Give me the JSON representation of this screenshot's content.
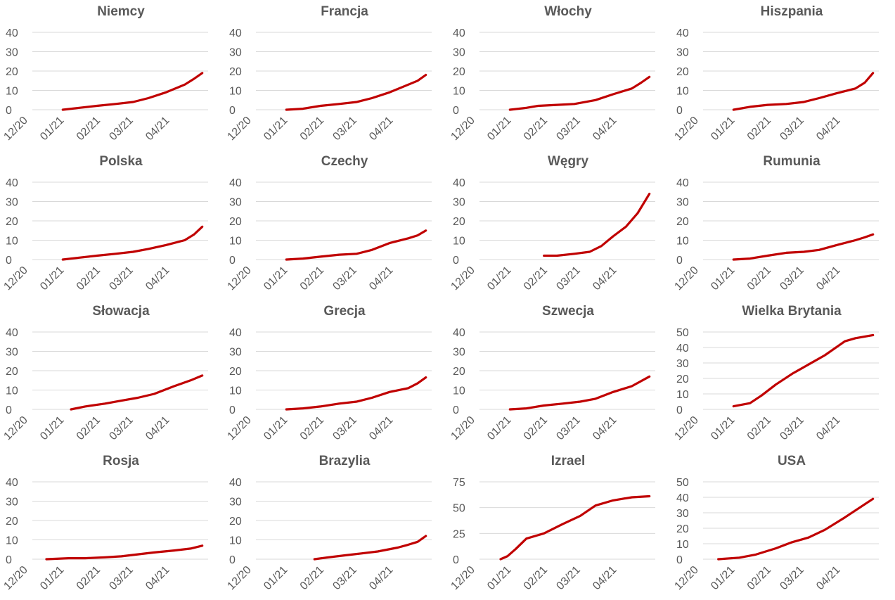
{
  "colors": {
    "series": "#c00000",
    "grid": "#d9d9d9",
    "text": "#595959"
  },
  "chart_data": [
    {
      "type": "line",
      "title": "Niemcy",
      "x_ticks": [
        "12/20",
        "01/21",
        "02/21",
        "03/21",
        "04/21"
      ],
      "ylim": [
        0,
        40
      ],
      "y_ticks": [
        "0",
        "10",
        "20",
        "30",
        "40"
      ],
      "series": [
        {
          "color": "#c00000",
          "x": [
            "12/27",
            "01/10",
            "01/25",
            "02/10",
            "02/25",
            "03/10",
            "03/25",
            "04/10",
            "04/18",
            "04/25"
          ],
          "values": [
            0,
            1,
            2,
            3,
            4,
            6,
            9,
            13,
            16,
            19
          ]
        }
      ]
    },
    {
      "type": "line",
      "title": "Francja",
      "x_ticks": [
        "12/20",
        "01/21",
        "02/21",
        "03/21",
        "04/21"
      ],
      "ylim": [
        0,
        40
      ],
      "y_ticks": [
        "0",
        "10",
        "20",
        "30",
        "40"
      ],
      "series": [
        {
          "color": "#c00000",
          "x": [
            "12/27",
            "01/10",
            "01/25",
            "02/10",
            "02/25",
            "03/10",
            "03/25",
            "04/10",
            "04/18",
            "04/25"
          ],
          "values": [
            0,
            0.5,
            2,
            3,
            4,
            6,
            9,
            13,
            15,
            18
          ]
        }
      ]
    },
    {
      "type": "line",
      "title": "Włochy",
      "x_ticks": [
        "12/20",
        "01/21",
        "02/21",
        "03/21",
        "04/21"
      ],
      "ylim": [
        0,
        40
      ],
      "y_ticks": [
        "0",
        "10",
        "20",
        "30",
        "40"
      ],
      "series": [
        {
          "color": "#c00000",
          "x": [
            "12/27",
            "01/10",
            "01/20",
            "02/05",
            "02/20",
            "03/10",
            "03/25",
            "04/10",
            "04/18",
            "04/25"
          ],
          "values": [
            0,
            1,
            2,
            2.5,
            3,
            5,
            8,
            11,
            14,
            17
          ]
        }
      ]
    },
    {
      "type": "line",
      "title": "Hiszpania",
      "x_ticks": [
        "12/20",
        "01/21",
        "02/21",
        "03/21",
        "04/21"
      ],
      "ylim": [
        0,
        40
      ],
      "y_ticks": [
        "0",
        "10",
        "20",
        "30",
        "40"
      ],
      "series": [
        {
          "color": "#c00000",
          "x": [
            "12/27",
            "01/10",
            "01/25",
            "02/10",
            "02/25",
            "03/10",
            "03/25",
            "04/10",
            "04/18",
            "04/25"
          ],
          "values": [
            0,
            1.5,
            2.5,
            3,
            4,
            6,
            8.5,
            11,
            14,
            19
          ]
        }
      ]
    },
    {
      "type": "line",
      "title": "Polska",
      "x_ticks": [
        "12/20",
        "01/21",
        "02/21",
        "03/21",
        "04/21"
      ],
      "ylim": [
        0,
        40
      ],
      "y_ticks": [
        "0",
        "10",
        "20",
        "30",
        "40"
      ],
      "series": [
        {
          "color": "#c00000",
          "x": [
            "12/27",
            "01/10",
            "01/25",
            "02/10",
            "02/25",
            "03/10",
            "03/25",
            "04/10",
            "04/18",
            "04/25"
          ],
          "values": [
            0,
            1,
            2,
            3,
            4,
            5.5,
            7.5,
            10,
            13,
            17
          ]
        }
      ]
    },
    {
      "type": "line",
      "title": "Czechy",
      "x_ticks": [
        "12/20",
        "01/21",
        "02/21",
        "03/21",
        "04/21"
      ],
      "ylim": [
        0,
        40
      ],
      "y_ticks": [
        "0",
        "10",
        "20",
        "30",
        "40"
      ],
      "series": [
        {
          "color": "#c00000",
          "x": [
            "12/27",
            "01/10",
            "01/25",
            "02/10",
            "02/25",
            "03/10",
            "03/25",
            "04/10",
            "04/18",
            "04/25"
          ],
          "values": [
            0,
            0.5,
            1.5,
            2.5,
            3,
            5,
            8.5,
            11,
            12.5,
            15
          ]
        }
      ]
    },
    {
      "type": "line",
      "title": "Węgry",
      "x_ticks": [
        "12/20",
        "01/21",
        "02/21",
        "03/21",
        "04/21"
      ],
      "ylim": [
        0,
        40
      ],
      "y_ticks": [
        "0",
        "10",
        "20",
        "30",
        "40"
      ],
      "series": [
        {
          "color": "#c00000",
          "x": [
            "01/25",
            "02/05",
            "02/20",
            "03/05",
            "03/15",
            "03/25",
            "04/05",
            "04/15",
            "04/25"
          ],
          "values": [
            2,
            2,
            3,
            4,
            7,
            12,
            17,
            24,
            34
          ]
        }
      ]
    },
    {
      "type": "line",
      "title": "Rumunia",
      "x_ticks": [
        "12/20",
        "01/21",
        "02/21",
        "03/21",
        "04/21"
      ],
      "ylim": [
        0,
        40
      ],
      "y_ticks": [
        "0",
        "10",
        "20",
        "30",
        "40"
      ],
      "series": [
        {
          "color": "#c00000",
          "x": [
            "12/27",
            "01/10",
            "01/25",
            "02/10",
            "02/25",
            "03/10",
            "03/25",
            "04/10",
            "04/18",
            "04/25"
          ],
          "values": [
            0,
            0.5,
            2,
            3.5,
            4,
            5,
            7.5,
            10,
            11.5,
            13
          ]
        }
      ]
    },
    {
      "type": "line",
      "title": "Słowacja",
      "x_ticks": [
        "12/20",
        "01/21",
        "02/21",
        "03/21",
        "04/21"
      ],
      "ylim": [
        0,
        40
      ],
      "y_ticks": [
        "0",
        "10",
        "20",
        "30",
        "40"
      ],
      "series": [
        {
          "color": "#c00000",
          "x": [
            "01/03",
            "01/15",
            "02/01",
            "02/15",
            "03/01",
            "03/15",
            "04/01",
            "04/15",
            "04/25"
          ],
          "values": [
            0,
            1.5,
            3,
            4.5,
            6,
            8,
            12,
            15,
            17.5
          ]
        }
      ]
    },
    {
      "type": "line",
      "title": "Grecja",
      "x_ticks": [
        "12/20",
        "01/21",
        "02/21",
        "03/21",
        "04/21"
      ],
      "ylim": [
        0,
        40
      ],
      "y_ticks": [
        "0",
        "10",
        "20",
        "30",
        "40"
      ],
      "series": [
        {
          "color": "#c00000",
          "x": [
            "12/27",
            "01/10",
            "01/25",
            "02/10",
            "02/25",
            "03/10",
            "03/25",
            "04/10",
            "04/18",
            "04/25"
          ],
          "values": [
            0,
            0.5,
            1.5,
            3,
            4,
            6,
            9,
            11,
            13.5,
            16.5
          ]
        }
      ]
    },
    {
      "type": "line",
      "title": "Szwecja",
      "x_ticks": [
        "12/20",
        "01/21",
        "02/21",
        "03/21",
        "04/21"
      ],
      "ylim": [
        0,
        40
      ],
      "y_ticks": [
        "0",
        "10",
        "20",
        "30",
        "40"
      ],
      "series": [
        {
          "color": "#c00000",
          "x": [
            "12/27",
            "01/10",
            "01/25",
            "02/10",
            "02/25",
            "03/10",
            "03/25",
            "04/10",
            "04/25"
          ],
          "values": [
            0,
            0.5,
            2,
            3,
            4,
            5.5,
            9,
            12,
            17
          ]
        }
      ]
    },
    {
      "type": "line",
      "title": "Wielka Brytania",
      "x_ticks": [
        "12/20",
        "01/21",
        "02/21",
        "03/21",
        "04/21"
      ],
      "ylim": [
        0,
        50
      ],
      "y_ticks": [
        "0",
        "10",
        "20",
        "30",
        "40",
        "50"
      ],
      "series": [
        {
          "color": "#c00000",
          "x": [
            "12/27",
            "01/10",
            "01/20",
            "02/01",
            "02/15",
            "03/01",
            "03/15",
            "04/01",
            "04/10",
            "04/25"
          ],
          "values": [
            2,
            4,
            9,
            16,
            23,
            29,
            35,
            44,
            46,
            48
          ]
        }
      ]
    },
    {
      "type": "line",
      "title": "Rosja",
      "x_ticks": [
        "12/20",
        "01/21",
        "02/21",
        "03/21",
        "04/21"
      ],
      "ylim": [
        0,
        40
      ],
      "y_ticks": [
        "0",
        "10",
        "20",
        "30",
        "40"
      ],
      "series": [
        {
          "color": "#c00000",
          "x": [
            "12/13",
            "01/01",
            "01/15",
            "02/01",
            "02/15",
            "03/01",
            "03/15",
            "04/01",
            "04/15",
            "04/25"
          ],
          "values": [
            0,
            0.5,
            0.5,
            1,
            1.5,
            2.5,
            3.5,
            4.5,
            5.5,
            7
          ]
        }
      ]
    },
    {
      "type": "line",
      "title": "Brazylia",
      "x_ticks": [
        "12/20",
        "01/21",
        "02/21",
        "03/21",
        "04/21"
      ],
      "ylim": [
        0,
        40
      ],
      "y_ticks": [
        "0",
        "10",
        "20",
        "30",
        "40"
      ],
      "series": [
        {
          "color": "#c00000",
          "x": [
            "01/20",
            "02/01",
            "02/15",
            "03/01",
            "03/15",
            "04/01",
            "04/10",
            "04/18",
            "04/25"
          ],
          "values": [
            0,
            1,
            2,
            3,
            4,
            6,
            7.5,
            9,
            12
          ]
        }
      ]
    },
    {
      "type": "line",
      "title": "Izrael",
      "x_ticks": [
        "12/20",
        "01/21",
        "02/21",
        "03/21",
        "04/21"
      ],
      "ylim": [
        0,
        75
      ],
      "y_ticks": [
        "0",
        "25",
        "50",
        "75"
      ],
      "series": [
        {
          "color": "#c00000",
          "x": [
            "12/19",
            "12/25",
            "01/01",
            "01/10",
            "01/25",
            "02/10",
            "02/25",
            "03/10",
            "03/25",
            "04/10",
            "04/25"
          ],
          "values": [
            0,
            3,
            10,
            20,
            25,
            34,
            42,
            52,
            57,
            60,
            61
          ]
        }
      ]
    },
    {
      "type": "line",
      "title": "USA",
      "x_ticks": [
        "12/20",
        "01/21",
        "02/21",
        "03/21",
        "04/21"
      ],
      "ylim": [
        0,
        50
      ],
      "y_ticks": [
        "0",
        "10",
        "20",
        "30",
        "40",
        "50"
      ],
      "series": [
        {
          "color": "#c00000",
          "x": [
            "12/14",
            "01/01",
            "01/15",
            "02/01",
            "02/15",
            "03/01",
            "03/15",
            "04/01",
            "04/15",
            "04/25"
          ],
          "values": [
            0,
            1,
            3,
            7,
            11,
            14,
            19,
            27,
            34,
            39
          ]
        }
      ]
    }
  ]
}
